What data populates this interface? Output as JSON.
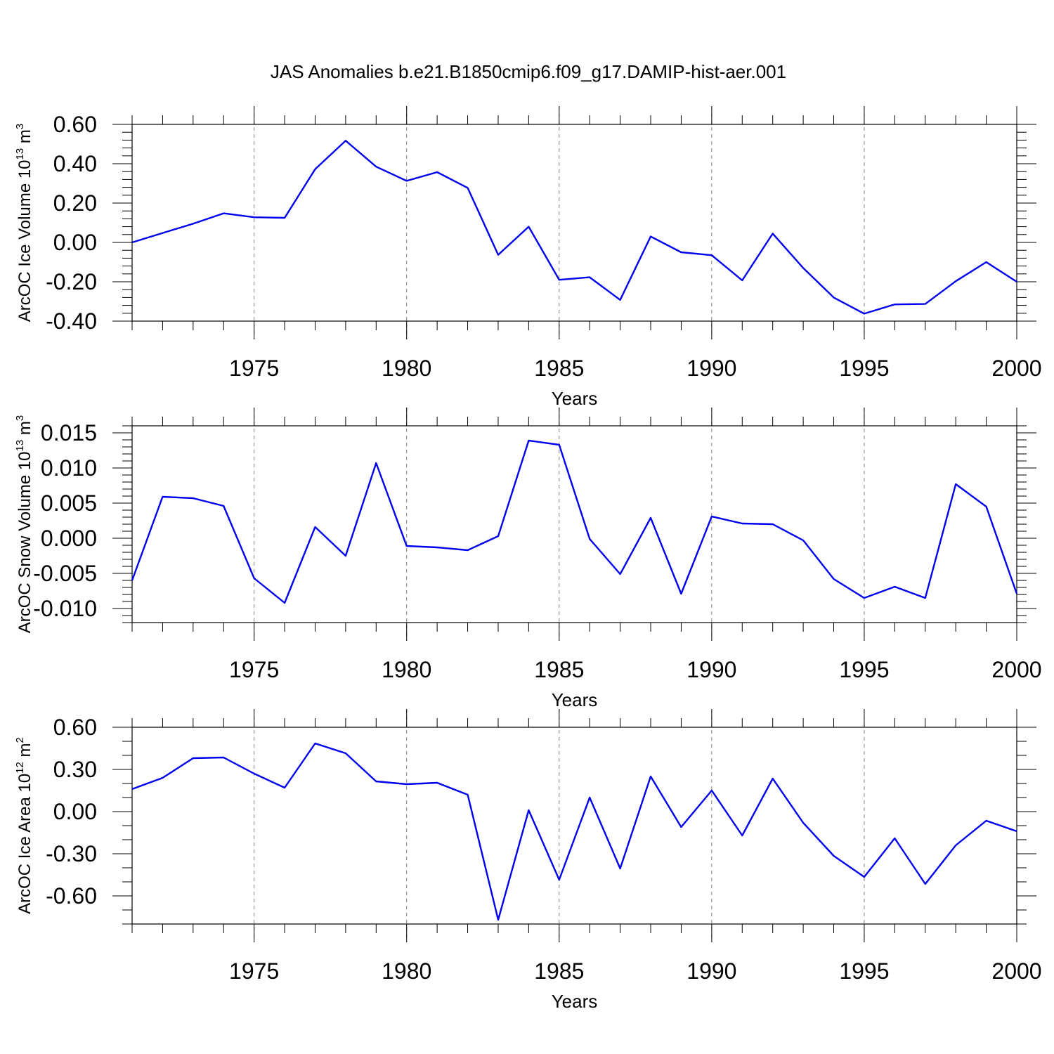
{
  "title": "JAS Anomalies b.e21.B1850cmip6.f09_g17.DAMIP-hist-aer.001",
  "colors": {
    "line": "#0000ee",
    "grid": "#808080",
    "axis": "#000000"
  },
  "chart_data": [
    {
      "type": "line",
      "ylabel_prefix": "ArcOC Ice Volume 10",
      "ylabel_exp": "13",
      "ylabel_unit": " m",
      "ylabel_unit_exp": "3",
      "xlabel": "Years",
      "xlim": [
        1971,
        2000
      ],
      "ylim": [
        -0.4,
        0.6
      ],
      "major_y": [
        -0.4,
        -0.2,
        0.0,
        0.2,
        0.4,
        0.6
      ],
      "y_tick_labels": [
        "-0.40",
        "-0.20",
        "0.00",
        "0.20",
        "0.40",
        "0.60"
      ],
      "minor_y_step": 0.04,
      "x_ticks": [
        1975,
        1980,
        1985,
        1990,
        1995,
        2000
      ],
      "x_tick_labels": [
        "1975",
        "1980",
        "1985",
        "1990",
        "1995",
        "2000"
      ],
      "grid_x": [
        1975,
        1980,
        1985,
        1990,
        1995
      ],
      "x": [
        1971,
        1972,
        1973,
        1974,
        1975,
        1976,
        1977,
        1978,
        1979,
        1980,
        1981,
        1982,
        1983,
        1984,
        1985,
        1986,
        1987,
        1988,
        1989,
        1990,
        1991,
        1992,
        1993,
        1994,
        1995,
        1996,
        1997,
        1998,
        1999,
        2000
      ],
      "values": [
        0.0,
        0.048,
        0.095,
        0.148,
        0.128,
        0.125,
        0.372,
        0.517,
        0.385,
        0.313,
        0.357,
        0.277,
        -0.063,
        0.08,
        -0.19,
        -0.177,
        -0.292,
        0.03,
        -0.05,
        -0.065,
        -0.193,
        0.045,
        -0.13,
        -0.28,
        -0.362,
        -0.315,
        -0.313,
        -0.197,
        -0.1,
        -0.2
      ]
    },
    {
      "type": "line",
      "ylabel_prefix": "ArcOC Snow Volume 10",
      "ylabel_exp": "13",
      "ylabel_unit": " m",
      "ylabel_unit_exp": "3",
      "xlabel": "Years",
      "xlim": [
        1971,
        2000
      ],
      "ylim": [
        -0.012,
        0.016
      ],
      "major_y": [
        -0.01,
        -0.005,
        0.0,
        0.005,
        0.01,
        0.015
      ],
      "y_tick_labels": [
        "-0.010",
        "-0.005",
        "0.000",
        "0.005",
        "0.010",
        "0.015"
      ],
      "minor_y_step": 0.001,
      "x_ticks": [
        1975,
        1980,
        1985,
        1990,
        1995,
        2000
      ],
      "x_tick_labels": [
        "1975",
        "1980",
        "1985",
        "1990",
        "1995",
        "2000"
      ],
      "grid_x": [
        1975,
        1980,
        1985,
        1990,
        1995
      ],
      "x": [
        1971,
        1972,
        1973,
        1974,
        1975,
        1976,
        1977,
        1978,
        1979,
        1980,
        1981,
        1982,
        1983,
        1984,
        1985,
        1986,
        1987,
        1988,
        1989,
        1990,
        1991,
        1992,
        1993,
        1994,
        1995,
        1996,
        1997,
        1998,
        1999,
        2000
      ],
      "values": [
        -0.006,
        0.0059,
        0.0057,
        0.0046,
        -0.0057,
        -0.0092,
        0.0016,
        -0.0025,
        0.0107,
        -0.0011,
        -0.0013,
        -0.0017,
        0.0003,
        0.0139,
        0.0133,
        -0.0001,
        -0.0051,
        0.0029,
        -0.0079,
        0.0031,
        0.0021,
        0.002,
        -0.0003,
        -0.0058,
        -0.0085,
        -0.0069,
        -0.0085,
        0.0077,
        0.0045,
        -0.0079
      ]
    },
    {
      "type": "line",
      "ylabel_prefix": "ArcOC Ice Area 10",
      "ylabel_exp": "12",
      "ylabel_unit": " m",
      "ylabel_unit_exp": "2",
      "xlabel": "Years",
      "xlim": [
        1971,
        2000
      ],
      "ylim": [
        -0.8,
        0.6
      ],
      "major_y": [
        -0.6,
        -0.3,
        0.0,
        0.3,
        0.6
      ],
      "y_tick_labels": [
        "-0.60",
        "-0.30",
        "0.00",
        "0.30",
        "0.60"
      ],
      "minor_y_step": 0.1,
      "x_ticks": [
        1975,
        1980,
        1985,
        1990,
        1995,
        2000
      ],
      "x_tick_labels": [
        "1975",
        "1980",
        "1985",
        "1990",
        "1995",
        "2000"
      ],
      "grid_x": [
        1975,
        1980,
        1985,
        1990,
        1995
      ],
      "x": [
        1971,
        1972,
        1973,
        1974,
        1975,
        1976,
        1977,
        1978,
        1979,
        1980,
        1981,
        1982,
        1983,
        1984,
        1985,
        1986,
        1987,
        1988,
        1989,
        1990,
        1991,
        1992,
        1993,
        1994,
        1995,
        1996,
        1997,
        1998,
        1999,
        2000
      ],
      "values": [
        0.16,
        0.24,
        0.38,
        0.385,
        0.27,
        0.17,
        0.485,
        0.415,
        0.215,
        0.195,
        0.205,
        0.12,
        -0.77,
        0.01,
        -0.485,
        0.1,
        -0.405,
        0.25,
        -0.11,
        0.15,
        -0.17,
        0.235,
        -0.08,
        -0.315,
        -0.465,
        -0.19,
        -0.515,
        -0.24,
        -0.065,
        -0.14
      ]
    }
  ]
}
